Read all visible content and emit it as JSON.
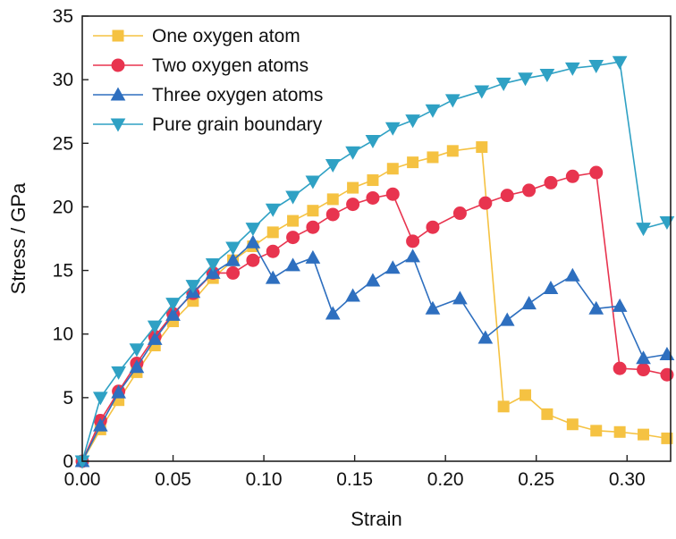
{
  "chart_data": {
    "type": "line",
    "xlabel": "Strain",
    "ylabel": "Stress / GPa",
    "xlim": [
      0,
      0.324
    ],
    "ylim": [
      0,
      35
    ],
    "xticks": [
      "0.00",
      "0.05",
      "0.10",
      "0.15",
      "0.20",
      "0.25",
      "0.30"
    ],
    "yticks": [
      "0",
      "5",
      "10",
      "15",
      "20",
      "25",
      "30",
      "35"
    ],
    "legend_position": "top-left",
    "grid": false,
    "series": [
      {
        "name": "One oxygen atom",
        "color": "#F5C242",
        "marker": "square",
        "x": [
          0,
          0.01,
          0.02,
          0.03,
          0.04,
          0.05,
          0.061,
          0.072,
          0.083,
          0.094,
          0.105,
          0.116,
          0.127,
          0.138,
          0.149,
          0.16,
          0.171,
          0.182,
          0.193,
          0.204,
          0.22,
          0.232,
          0.244,
          0.256,
          0.27,
          0.283,
          0.296,
          0.309,
          0.322
        ],
        "y": [
          0,
          2.5,
          4.8,
          7.0,
          9.1,
          11.0,
          12.6,
          14.4,
          15.8,
          16.9,
          18.0,
          18.9,
          19.7,
          20.6,
          21.5,
          22.1,
          23.0,
          23.5,
          23.9,
          24.4,
          24.7,
          4.3,
          5.2,
          3.7,
          2.9,
          2.4,
          2.3,
          2.1,
          1.8
        ]
      },
      {
        "name": "Two oxygen atoms",
        "color": "#E8344F",
        "marker": "circle",
        "x": [
          0,
          0.01,
          0.02,
          0.03,
          0.04,
          0.05,
          0.061,
          0.072,
          0.083,
          0.094,
          0.105,
          0.116,
          0.127,
          0.138,
          0.149,
          0.16,
          0.171,
          0.182,
          0.193,
          0.208,
          0.222,
          0.234,
          0.246,
          0.258,
          0.27,
          0.283,
          0.296,
          0.309,
          0.322
        ],
        "y": [
          0,
          3.2,
          5.5,
          7.7,
          9.8,
          11.6,
          13.2,
          14.8,
          14.8,
          15.8,
          16.5,
          17.6,
          18.4,
          19.4,
          20.2,
          20.7,
          21.0,
          17.3,
          18.4,
          19.5,
          20.3,
          20.9,
          21.3,
          21.9,
          22.4,
          22.7,
          7.3,
          7.2,
          6.8
        ]
      },
      {
        "name": "Three oxygen atoms",
        "color": "#2E6FBF",
        "marker": "triangle-up",
        "x": [
          0,
          0.01,
          0.02,
          0.03,
          0.04,
          0.05,
          0.061,
          0.072,
          0.083,
          0.094,
          0.105,
          0.116,
          0.127,
          0.138,
          0.149,
          0.16,
          0.171,
          0.182,
          0.193,
          0.208,
          0.222,
          0.234,
          0.246,
          0.258,
          0.27,
          0.283,
          0.296,
          0.309,
          0.322
        ],
        "y": [
          0,
          2.8,
          5.4,
          7.4,
          9.6,
          11.5,
          13.3,
          14.8,
          15.8,
          17.2,
          14.4,
          15.4,
          16.0,
          11.6,
          13.0,
          14.2,
          15.2,
          16.1,
          12.0,
          12.8,
          9.7,
          11.1,
          12.4,
          13.6,
          14.6,
          12.0,
          12.2,
          8.1,
          8.4
        ]
      },
      {
        "name": "Pure grain boundary",
        "color": "#2FA1C4",
        "marker": "triangle-down",
        "x": [
          0,
          0.01,
          0.02,
          0.03,
          0.04,
          0.05,
          0.061,
          0.072,
          0.083,
          0.094,
          0.105,
          0.116,
          0.127,
          0.138,
          0.149,
          0.16,
          0.171,
          0.182,
          0.193,
          0.204,
          0.22,
          0.232,
          0.244,
          0.256,
          0.27,
          0.283,
          0.296,
          0.309,
          0.322
        ],
        "y": [
          0,
          5.0,
          7.0,
          8.8,
          10.6,
          12.4,
          13.8,
          15.5,
          16.8,
          18.3,
          19.8,
          20.8,
          22.0,
          23.3,
          24.3,
          25.2,
          26.2,
          26.8,
          27.6,
          28.4,
          29.1,
          29.7,
          30.1,
          30.4,
          30.9,
          31.1,
          31.4,
          18.3,
          18.8
        ]
      }
    ]
  }
}
